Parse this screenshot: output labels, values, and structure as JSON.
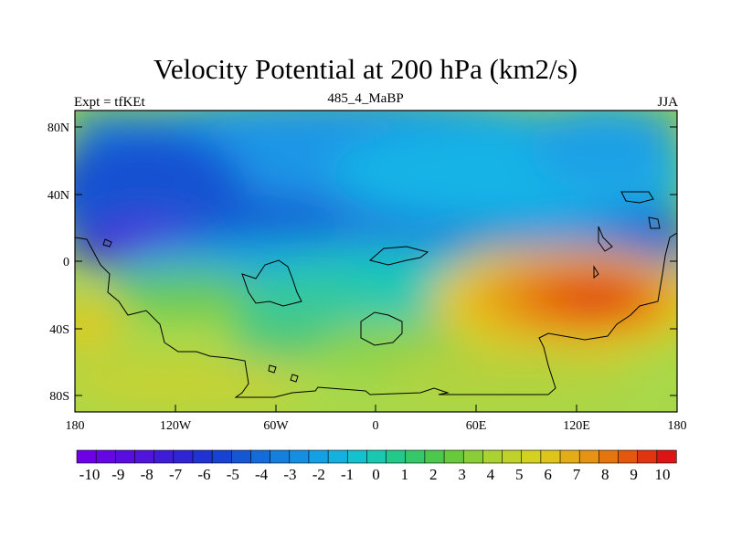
{
  "title": "Velocity Potential at 200 hPa (km2/s)",
  "subtitle_left": "Expt = tfKEt",
  "subtitle_center": "485_4_MaBP",
  "subtitle_right": "JJA",
  "x_ticks": [
    "180",
    "120W",
    "60W",
    "0",
    "60E",
    "120E",
    "180"
  ],
  "y_ticks": [
    "80N",
    "40N",
    "0",
    "40S",
    "80S"
  ],
  "colorbar": {
    "labels": [
      "-10",
      "-9",
      "-8",
      "-7",
      "-6",
      "-5",
      "-4",
      "-3",
      "-2",
      "-1",
      "0",
      "1",
      "2",
      "3",
      "4",
      "5",
      "6",
      "7",
      "8",
      "9",
      "10"
    ]
  },
  "chart_data": {
    "type": "heatmap",
    "title": "Velocity Potential at 200 hPa (km2/s)",
    "xlim": [
      -180,
      180
    ],
    "ylim": [
      -90,
      90
    ],
    "features": [
      {
        "kind": "minimum",
        "lon": -130,
        "lat": 10,
        "value": -9.5
      },
      {
        "kind": "maximum",
        "lon": 130,
        "lat": -25,
        "value": 9.5
      }
    ]
  }
}
